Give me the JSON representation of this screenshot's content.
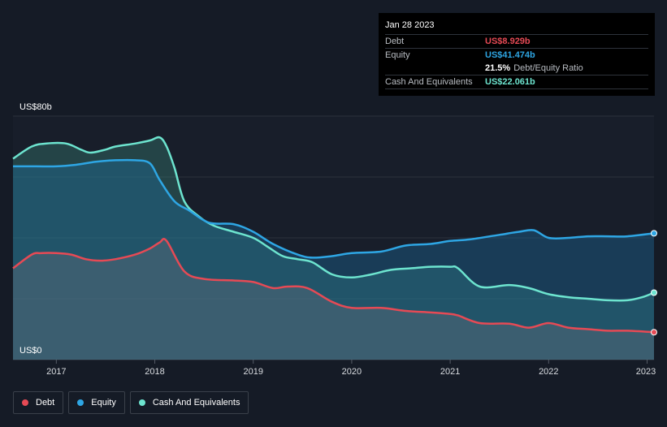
{
  "chart_data": {
    "type": "area",
    "title": "",
    "y_axis": {
      "max_label": "US$80b",
      "min_label": "US$0",
      "ylim": [
        0,
        80
      ],
      "unit": "US$b"
    },
    "x_ticks": [
      "2017",
      "2018",
      "2019",
      "2020",
      "2021",
      "2022",
      "2023"
    ],
    "xlim": [
      2016.56,
      2023.07
    ],
    "series": [
      {
        "name": "Cash And Equivalents",
        "color": "#6de4cf",
        "x": [
          2016.56,
          2016.75,
          2016.9,
          2017.1,
          2017.25,
          2017.35,
          2017.5,
          2017.6,
          2017.8,
          2017.95,
          2018.05,
          2018.12,
          2018.2,
          2018.3,
          2018.45,
          2018.6,
          2018.8,
          2019.0,
          2019.15,
          2019.3,
          2019.45,
          2019.6,
          2019.8,
          2020.0,
          2020.2,
          2020.4,
          2020.6,
          2020.8,
          2021.0,
          2021.08,
          2021.3,
          2021.6,
          2021.8,
          2022.0,
          2022.2,
          2022.4,
          2022.6,
          2022.8,
          2022.95,
          2023.07
        ],
        "values": [
          66,
          70,
          71,
          71,
          69,
          68,
          69,
          70,
          71,
          72,
          73,
          70,
          63,
          52,
          47,
          44,
          42,
          40,
          37,
          34,
          33,
          32,
          28,
          27,
          28,
          29.5,
          30,
          30.5,
          30.5,
          30,
          24,
          24.5,
          23.5,
          21.5,
          20.5,
          20,
          19.5,
          19.5,
          20.5,
          22
        ]
      },
      {
        "name": "Equity",
        "color": "#2ea6e4",
        "x": [
          2016.56,
          2016.8,
          2017.0,
          2017.2,
          2017.4,
          2017.6,
          2017.8,
          2017.95,
          2018.05,
          2018.2,
          2018.35,
          2018.55,
          2018.8,
          2019.0,
          2019.2,
          2019.45,
          2019.6,
          2019.8,
          2020.0,
          2020.3,
          2020.55,
          2020.8,
          2021.0,
          2021.2,
          2021.5,
          2021.7,
          2021.85,
          2022.0,
          2022.2,
          2022.4,
          2022.6,
          2022.8,
          2023.07
        ],
        "values": [
          63.5,
          63.5,
          63.5,
          64,
          65,
          65.5,
          65.5,
          64.5,
          59,
          52,
          49,
          45,
          44.5,
          42,
          38,
          34.5,
          33.5,
          34,
          35,
          35.5,
          37.5,
          38,
          39,
          39.5,
          41,
          42,
          42.5,
          40,
          40,
          40.5,
          40.5,
          40.5,
          41.5
        ]
      },
      {
        "name": "Debt",
        "color": "#e64a55",
        "x": [
          2016.56,
          2016.75,
          2016.85,
          2017.0,
          2017.15,
          2017.3,
          2017.45,
          2017.6,
          2017.8,
          2017.95,
          2018.05,
          2018.12,
          2018.3,
          2018.5,
          2018.8,
          2019.0,
          2019.2,
          2019.35,
          2019.55,
          2019.8,
          2020.0,
          2020.3,
          2020.55,
          2020.8,
          2021.0,
          2021.08,
          2021.3,
          2021.6,
          2021.8,
          2022.0,
          2022.2,
          2022.4,
          2022.6,
          2022.8,
          2023.07
        ],
        "values": [
          30,
          34.5,
          35,
          35,
          34.5,
          33,
          32.5,
          33,
          34.5,
          36.5,
          38.5,
          39,
          29,
          26.5,
          26,
          25.5,
          23.5,
          24,
          23.5,
          19,
          17,
          17,
          16,
          15.5,
          15,
          14.5,
          12,
          11.8,
          10.5,
          12,
          10.5,
          10,
          9.5,
          9.5,
          9
        ]
      }
    ]
  },
  "tooltip": {
    "date": "Jan 28 2023",
    "debt_label": "Debt",
    "debt_value": "US$8.929b",
    "debt_color": "#e64a55",
    "equity_label": "Equity",
    "equity_value": "US$41.474b",
    "equity_color": "#2ea6e4",
    "ratio_pct": "21.5%",
    "ratio_label": "Debt/Equity Ratio",
    "cash_label": "Cash And Equivalents",
    "cash_value": "US$22.061b",
    "cash_color": "#6de4cf"
  },
  "legend": [
    {
      "label": "Debt",
      "color": "#e64a55"
    },
    {
      "label": "Equity",
      "color": "#2ea6e4"
    },
    {
      "label": "Cash And Equivalents",
      "color": "#6de4cf"
    }
  ]
}
